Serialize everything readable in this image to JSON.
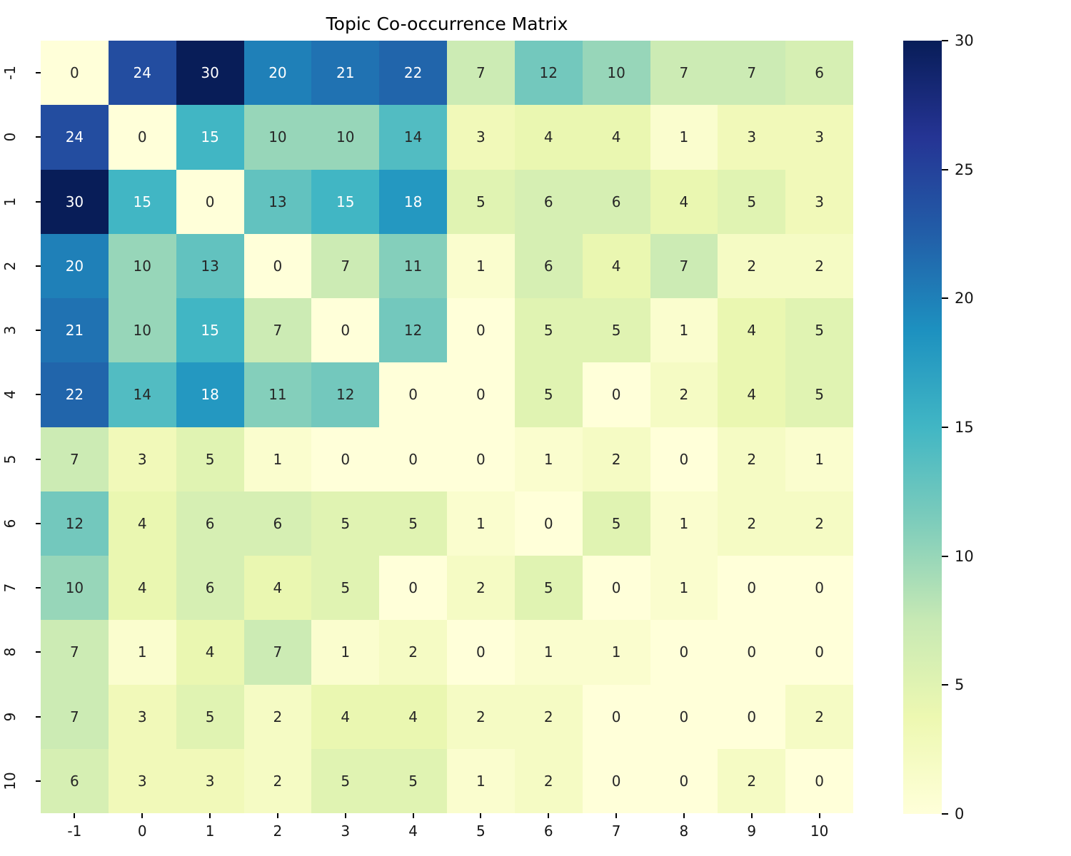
{
  "chart_data": {
    "type": "heatmap",
    "title": "Topic Co-occurrence Matrix",
    "x_labels": [
      "-1",
      "0",
      "1",
      "2",
      "3",
      "4",
      "5",
      "6",
      "7",
      "8",
      "9",
      "10"
    ],
    "y_labels": [
      "-1",
      "0",
      "1",
      "2",
      "3",
      "4",
      "5",
      "6",
      "7",
      "8",
      "9",
      "10"
    ],
    "matrix": [
      [
        0,
        24,
        30,
        20,
        21,
        22,
        7,
        12,
        10,
        7,
        7,
        6
      ],
      [
        24,
        0,
        15,
        10,
        10,
        14,
        3,
        4,
        4,
        1,
        3,
        3
      ],
      [
        30,
        15,
        0,
        13,
        15,
        18,
        5,
        6,
        6,
        4,
        5,
        3
      ],
      [
        20,
        10,
        13,
        0,
        7,
        11,
        1,
        6,
        4,
        7,
        2,
        2
      ],
      [
        21,
        10,
        15,
        7,
        0,
        12,
        0,
        5,
        5,
        1,
        4,
        5
      ],
      [
        22,
        14,
        18,
        11,
        12,
        0,
        0,
        5,
        0,
        2,
        4,
        5
      ],
      [
        7,
        3,
        5,
        1,
        0,
        0,
        0,
        1,
        2,
        0,
        2,
        1
      ],
      [
        12,
        4,
        6,
        6,
        5,
        5,
        1,
        0,
        5,
        1,
        2,
        2
      ],
      [
        10,
        4,
        6,
        4,
        5,
        0,
        2,
        5,
        0,
        1,
        0,
        0
      ],
      [
        7,
        1,
        4,
        7,
        1,
        2,
        0,
        1,
        1,
        0,
        0,
        0
      ],
      [
        7,
        3,
        5,
        2,
        4,
        4,
        2,
        2,
        0,
        0,
        0,
        2
      ],
      [
        6,
        3,
        3,
        2,
        5,
        5,
        1,
        2,
        0,
        0,
        2,
        0
      ]
    ],
    "vmin": 0,
    "vmax": 30,
    "annotated": true,
    "grid": false,
    "colormap": "YlGnBu",
    "colormap_stops": [
      [
        0.0,
        "#ffffd9"
      ],
      [
        0.125,
        "#edf8b1"
      ],
      [
        0.25,
        "#c7e9b4"
      ],
      [
        0.375,
        "#7fcdbb"
      ],
      [
        0.5,
        "#41b6c4"
      ],
      [
        0.625,
        "#1d91c0"
      ],
      [
        0.75,
        "#225ea8"
      ],
      [
        0.875,
        "#253494"
      ],
      [
        1.0,
        "#081d58"
      ]
    ],
    "colorbar": {
      "position": "right",
      "ticks": [
        0,
        5,
        10,
        15,
        20,
        25,
        30
      ]
    },
    "annotation_text_dark": "#262626",
    "annotation_text_light": "#ffffff",
    "background_color": "#ffffff"
  }
}
